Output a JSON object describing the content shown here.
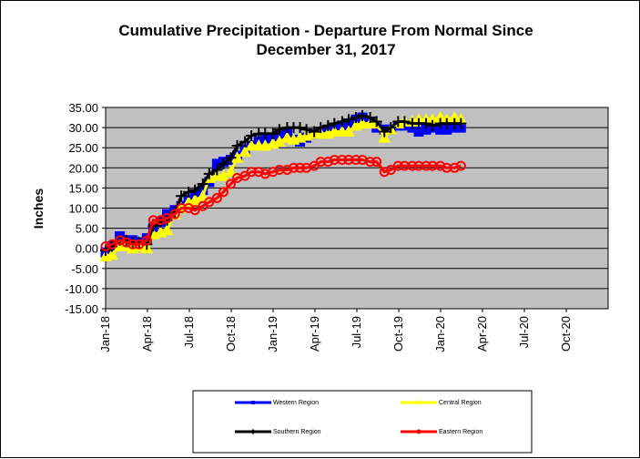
{
  "chart_data": {
    "type": "line",
    "title_line1": "Cumulative Precipitation - Departure From Normal Since",
    "title_line2": "December 31, 2017",
    "ylabel": "Inches",
    "xlabel": "",
    "ylim": [
      -15,
      35
    ],
    "y_ticks": [
      "35.00",
      "30.00",
      "25.00",
      "20.00",
      "15.00",
      "10.00",
      "5.00",
      "0.00",
      "-5.00",
      "-10.00",
      "-15.00"
    ],
    "x_ticks": [
      "Jan-18",
      "Apr-18",
      "Jul-18",
      "Oct-18",
      "Jan-19",
      "Apr-19",
      "Jul-19",
      "Oct-19",
      "Jan-20",
      "Apr-20",
      "Jul-20",
      "Oct-20"
    ],
    "x_range": [
      "2018-01-01",
      "2021-01-01"
    ],
    "plot_background": "#c0c0c0",
    "grid": "horizontal",
    "legend_position": "bottom",
    "series": [
      {
        "name": "Western Region",
        "color": "#0000ff",
        "marker": "square",
        "points": [
          [
            "2018-01-01",
            -1.0
          ],
          [
            "2018-01-15",
            0.5
          ],
          [
            "2018-02-01",
            3.0
          ],
          [
            "2018-02-15",
            2.0
          ],
          [
            "2018-03-01",
            2.0
          ],
          [
            "2018-03-15",
            1.5
          ],
          [
            "2018-04-01",
            2.5
          ],
          [
            "2018-04-15",
            5.0
          ],
          [
            "2018-05-01",
            6.5
          ],
          [
            "2018-05-15",
            8.5
          ],
          [
            "2018-06-01",
            9.5
          ],
          [
            "2018-06-15",
            10.5
          ],
          [
            "2018-07-01",
            12.0
          ],
          [
            "2018-07-15",
            13.5
          ],
          [
            "2018-08-01",
            14.5
          ],
          [
            "2018-08-15",
            16.5
          ],
          [
            "2018-09-01",
            21.0
          ],
          [
            "2018-09-15",
            21.5
          ],
          [
            "2018-10-01",
            22.0
          ],
          [
            "2018-10-15",
            23.0
          ],
          [
            "2018-11-01",
            24.5
          ],
          [
            "2018-11-15",
            25.5
          ],
          [
            "2018-12-01",
            26.5
          ],
          [
            "2018-12-15",
            27.0
          ],
          [
            "2019-01-01",
            27.5
          ],
          [
            "2019-01-15",
            28.0
          ],
          [
            "2019-02-01",
            28.5
          ],
          [
            "2019-02-15",
            27.0
          ],
          [
            "2019-03-01",
            26.5
          ],
          [
            "2019-03-15",
            27.5
          ],
          [
            "2019-04-01",
            28.5
          ],
          [
            "2019-04-15",
            29.0
          ],
          [
            "2019-05-01",
            29.5
          ],
          [
            "2019-05-15",
            30.0
          ],
          [
            "2019-06-01",
            30.5
          ],
          [
            "2019-06-15",
            31.0
          ],
          [
            "2019-07-01",
            32.0
          ],
          [
            "2019-07-15",
            32.5
          ],
          [
            "2019-08-01",
            31.5
          ],
          [
            "2019-08-15",
            30.0
          ],
          [
            "2019-09-01",
            29.5
          ],
          [
            "2019-09-15",
            29.5
          ],
          [
            "2019-10-01",
            30.5
          ],
          [
            "2019-10-15",
            30.5
          ],
          [
            "2019-11-01",
            30.0
          ],
          [
            "2019-11-15",
            29.0
          ],
          [
            "2019-12-01",
            29.5
          ],
          [
            "2019-12-15",
            30.0
          ],
          [
            "2020-01-01",
            29.5
          ],
          [
            "2020-01-15",
            29.5
          ],
          [
            "2020-02-01",
            30.0
          ],
          [
            "2020-02-15",
            30.0
          ]
        ]
      },
      {
        "name": "Central Region",
        "color": "#ffff00",
        "marker": "triangle",
        "points": [
          [
            "2018-01-01",
            -2.0
          ],
          [
            "2018-01-15",
            -1.5
          ],
          [
            "2018-02-01",
            0.5
          ],
          [
            "2018-02-15",
            0.5
          ],
          [
            "2018-03-01",
            0.0
          ],
          [
            "2018-03-15",
            0.5
          ],
          [
            "2018-04-01",
            0.0
          ],
          [
            "2018-04-15",
            3.5
          ],
          [
            "2018-05-01",
            4.0
          ],
          [
            "2018-05-15",
            4.5
          ],
          [
            "2018-06-01",
            8.5
          ],
          [
            "2018-06-15",
            10.0
          ],
          [
            "2018-07-01",
            11.5
          ],
          [
            "2018-07-15",
            12.0
          ],
          [
            "2018-08-01",
            13.0
          ],
          [
            "2018-08-15",
            17.5
          ],
          [
            "2018-09-01",
            18.0
          ],
          [
            "2018-09-15",
            18.0
          ],
          [
            "2018-10-01",
            19.0
          ],
          [
            "2018-10-15",
            22.5
          ],
          [
            "2018-11-01",
            24.0
          ],
          [
            "2018-11-15",
            25.5
          ],
          [
            "2018-12-01",
            25.5
          ],
          [
            "2018-12-15",
            25.5
          ],
          [
            "2019-01-01",
            26.0
          ],
          [
            "2019-01-15",
            26.5
          ],
          [
            "2019-02-01",
            27.5
          ],
          [
            "2019-02-15",
            27.0
          ],
          [
            "2019-03-01",
            27.5
          ],
          [
            "2019-03-15",
            28.0
          ],
          [
            "2019-04-01",
            28.5
          ],
          [
            "2019-04-15",
            28.5
          ],
          [
            "2019-05-01",
            28.5
          ],
          [
            "2019-05-15",
            29.0
          ],
          [
            "2019-06-01",
            29.0
          ],
          [
            "2019-06-15",
            29.0
          ],
          [
            "2019-07-01",
            30.5
          ],
          [
            "2019-07-15",
            31.0
          ],
          [
            "2019-08-01",
            31.0
          ],
          [
            "2019-08-15",
            31.0
          ],
          [
            "2019-09-01",
            27.5
          ],
          [
            "2019-09-15",
            29.5
          ],
          [
            "2019-10-01",
            31.0
          ],
          [
            "2019-10-15",
            31.5
          ],
          [
            "2019-11-01",
            31.5
          ],
          [
            "2019-11-15",
            32.0
          ],
          [
            "2019-12-01",
            32.0
          ],
          [
            "2019-12-15",
            32.0
          ],
          [
            "2020-01-01",
            32.5
          ],
          [
            "2020-01-15",
            32.0
          ],
          [
            "2020-02-01",
            32.5
          ],
          [
            "2020-02-15",
            32.0
          ]
        ]
      },
      {
        "name": "Southern Region",
        "color": "#000000",
        "marker": "plus",
        "points": [
          [
            "2018-01-01",
            -0.5
          ],
          [
            "2018-01-15",
            0.5
          ],
          [
            "2018-02-01",
            2.0
          ],
          [
            "2018-02-15",
            2.0
          ],
          [
            "2018-03-01",
            1.5
          ],
          [
            "2018-03-15",
            1.5
          ],
          [
            "2018-04-01",
            1.0
          ],
          [
            "2018-04-15",
            5.5
          ],
          [
            "2018-05-01",
            6.5
          ],
          [
            "2018-05-15",
            7.0
          ],
          [
            "2018-06-01",
            9.0
          ],
          [
            "2018-06-15",
            13.0
          ],
          [
            "2018-07-01",
            14.0
          ],
          [
            "2018-07-15",
            14.5
          ],
          [
            "2018-08-01",
            16.0
          ],
          [
            "2018-08-15",
            18.5
          ],
          [
            "2018-09-01",
            19.5
          ],
          [
            "2018-09-15",
            21.0
          ],
          [
            "2018-10-01",
            22.5
          ],
          [
            "2018-10-15",
            25.5
          ],
          [
            "2018-11-01",
            26.5
          ],
          [
            "2018-11-15",
            28.0
          ],
          [
            "2018-12-01",
            28.5
          ],
          [
            "2018-12-15",
            28.5
          ],
          [
            "2019-01-01",
            28.5
          ],
          [
            "2019-01-15",
            29.5
          ],
          [
            "2019-02-01",
            30.0
          ],
          [
            "2019-02-15",
            30.0
          ],
          [
            "2019-03-01",
            30.0
          ],
          [
            "2019-03-15",
            29.5
          ],
          [
            "2019-04-01",
            29.0
          ],
          [
            "2019-04-15",
            30.0
          ],
          [
            "2019-05-01",
            30.5
          ],
          [
            "2019-05-15",
            31.0
          ],
          [
            "2019-06-01",
            31.5
          ],
          [
            "2019-06-15",
            32.0
          ],
          [
            "2019-07-01",
            32.5
          ],
          [
            "2019-07-15",
            33.0
          ],
          [
            "2019-08-01",
            32.5
          ],
          [
            "2019-08-15",
            31.5
          ],
          [
            "2019-09-01",
            29.0
          ],
          [
            "2019-09-15",
            30.0
          ],
          [
            "2019-10-01",
            31.5
          ],
          [
            "2019-10-15",
            31.5
          ],
          [
            "2019-11-01",
            31.0
          ],
          [
            "2019-11-15",
            31.0
          ],
          [
            "2019-12-01",
            31.0
          ],
          [
            "2019-12-15",
            30.5
          ],
          [
            "2020-01-01",
            31.0
          ],
          [
            "2020-01-15",
            31.0
          ],
          [
            "2020-02-01",
            31.0
          ],
          [
            "2020-02-15",
            31.0
          ]
        ]
      },
      {
        "name": "Eastern Region",
        "color": "#ff0000",
        "marker": "circle",
        "points": [
          [
            "2018-01-01",
            0.5
          ],
          [
            "2018-01-15",
            1.0
          ],
          [
            "2018-02-01",
            2.0
          ],
          [
            "2018-02-15",
            1.5
          ],
          [
            "2018-03-01",
            1.0
          ],
          [
            "2018-03-15",
            1.0
          ],
          [
            "2018-04-01",
            2.0
          ],
          [
            "2018-04-15",
            7.0
          ],
          [
            "2018-05-01",
            7.0
          ],
          [
            "2018-05-15",
            7.5
          ],
          [
            "2018-06-01",
            8.5
          ],
          [
            "2018-06-15",
            10.0
          ],
          [
            "2018-07-01",
            10.0
          ],
          [
            "2018-07-15",
            9.5
          ],
          [
            "2018-08-01",
            10.5
          ],
          [
            "2018-08-15",
            11.5
          ],
          [
            "2018-09-01",
            12.5
          ],
          [
            "2018-09-15",
            14.0
          ],
          [
            "2018-10-01",
            16.0
          ],
          [
            "2018-10-15",
            17.5
          ],
          [
            "2018-11-01",
            18.0
          ],
          [
            "2018-11-15",
            19.0
          ],
          [
            "2018-12-01",
            19.0
          ],
          [
            "2018-12-15",
            18.5
          ],
          [
            "2019-01-01",
            19.0
          ],
          [
            "2019-01-15",
            19.5
          ],
          [
            "2019-02-01",
            19.5
          ],
          [
            "2019-02-15",
            20.0
          ],
          [
            "2019-03-01",
            20.0
          ],
          [
            "2019-03-15",
            20.0
          ],
          [
            "2019-04-01",
            20.5
          ],
          [
            "2019-04-15",
            21.5
          ],
          [
            "2019-05-01",
            21.5
          ],
          [
            "2019-05-15",
            22.0
          ],
          [
            "2019-06-01",
            22.0
          ],
          [
            "2019-06-15",
            22.0
          ],
          [
            "2019-07-01",
            22.0
          ],
          [
            "2019-07-15",
            22.0
          ],
          [
            "2019-08-01",
            21.5
          ],
          [
            "2019-08-15",
            21.5
          ],
          [
            "2019-09-01",
            19.0
          ],
          [
            "2019-09-15",
            19.5
          ],
          [
            "2019-10-01",
            20.5
          ],
          [
            "2019-10-15",
            20.5
          ],
          [
            "2019-11-01",
            20.5
          ],
          [
            "2019-11-15",
            20.5
          ],
          [
            "2019-12-01",
            20.5
          ],
          [
            "2019-12-15",
            20.5
          ],
          [
            "2020-01-01",
            20.5
          ],
          [
            "2020-01-15",
            20.0
          ],
          [
            "2020-02-01",
            20.0
          ],
          [
            "2020-02-15",
            20.5
          ]
        ]
      }
    ]
  }
}
